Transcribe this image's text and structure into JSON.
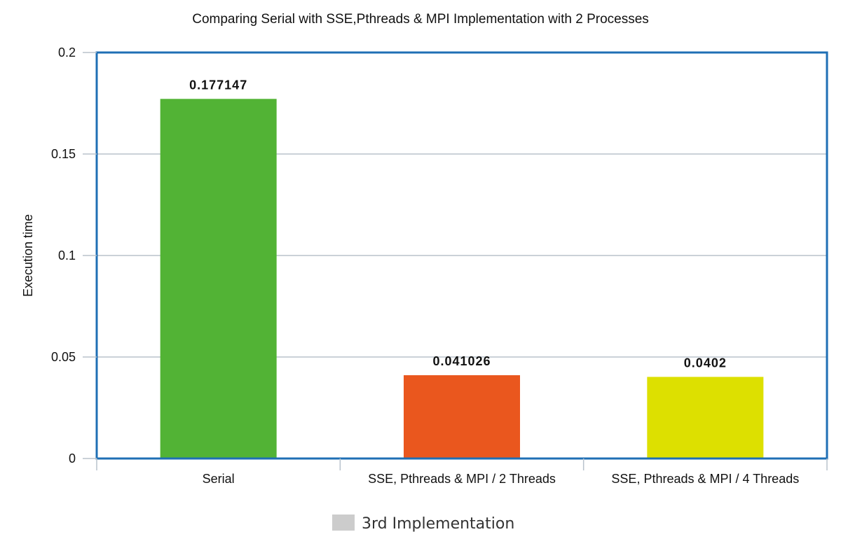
{
  "chart_data": {
    "type": "bar",
    "title": "Comparing Serial with SSE,Pthreads & MPI Implementation with 2 Processes",
    "xlabel": "",
    "ylabel": "Execution time",
    "ylim": [
      0,
      0.2
    ],
    "yticks": [
      "0",
      "0.05",
      "0.1",
      "0.15",
      "0.2"
    ],
    "categories": [
      "Serial",
      "SSE, Pthreads & MPI / 2 Threads",
      "SSE, Pthreads & MPI / 4 Threads"
    ],
    "values": [
      0.177147,
      0.041026,
      0.0402
    ],
    "data_labels": [
      "0.177147",
      "0.041026",
      "0.0402"
    ],
    "bar_colors": [
      "#52b335",
      "#ea571e",
      "#dde000"
    ],
    "grid": true,
    "legend": {
      "position": "bottom",
      "entries": [
        {
          "name": "3rd Implementation",
          "color": "#cccccc"
        }
      ]
    },
    "frame_color": "#1f6fb5",
    "grid_color": "#b8c2cc"
  }
}
